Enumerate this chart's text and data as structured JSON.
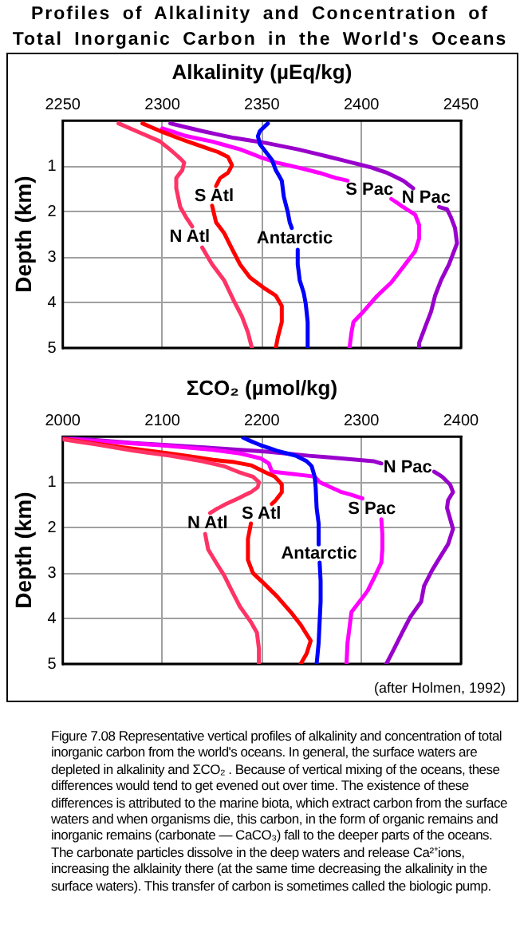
{
  "chart_data": [
    {
      "type": "line",
      "title": "Profiles of Alkalinity and Concentration of Total Inorganic Carbon in the World's Oceans",
      "xlabel": "Alkalinity (µEq/kg)",
      "ylabel": "Depth (km)",
      "xlim": [
        2250,
        2450
      ],
      "xticks": [
        2250,
        2300,
        2350,
        2400,
        2450
      ],
      "ylim": [
        5,
        0
      ],
      "yticks": [
        1,
        2,
        3,
        4,
        5
      ],
      "grid": true,
      "legend": false,
      "marker": "none",
      "series": [
        {
          "name": "N Atl",
          "color": "#ff3366",
          "x": [
            2278,
            2299,
            2307,
            2311,
            2310,
            2307,
            2307,
            2309,
            2312,
            2315,
            null,
            2320,
            2325,
            2331,
            2336,
            2340,
            2343,
            2345
          ],
          "values": [
            0.06,
            0.46,
            0.75,
            0.92,
            1.09,
            1.26,
            1.49,
            1.9,
            2.13,
            2.33,
            null,
            2.79,
            3.16,
            3.51,
            3.97,
            4.31,
            4.66,
            5
          ]
        },
        {
          "name": "S Atl",
          "color": "#ff0000",
          "x": [
            2290,
            2299,
            2309,
            2320,
            2328,
            2333,
            2335,
            2333,
            2329,
            2327,
            null,
            2325,
            2327,
            2331,
            2335,
            2339,
            2344,
            2351,
            2357,
            2360,
            2360,
            2358,
            2357
          ],
          "values": [
            0.06,
            0.23,
            0.4,
            0.57,
            0.69,
            0.8,
            0.98,
            1.15,
            1.26,
            1.44,
            null,
            1.87,
            2.24,
            2.47,
            2.82,
            3.16,
            3.45,
            3.68,
            3.85,
            4.08,
            4.43,
            4.77,
            5
          ]
        },
        {
          "name": "Antarctic",
          "color": "#0000ff",
          "x": [
            2353,
            2349,
            2348,
            2349,
            2352,
            2355,
            2357,
            2360,
            2361,
            2363,
            2364,
            2365,
            null,
            2368,
            2368,
            2369,
            2371,
            2372,
            2373,
            2373
          ],
          "values": [
            0.06,
            0.23,
            0.34,
            0.52,
            0.69,
            0.86,
            1.09,
            1.32,
            1.67,
            2.01,
            2.24,
            2.36,
            null,
            2.84,
            3.16,
            3.51,
            3.79,
            4.02,
            4.43,
            5
          ]
        },
        {
          "name": "S Pac",
          "color": "#ff00ff",
          "x": [
            2300,
            2312,
            2325,
            2339,
            2349,
            2357,
            2368,
            2379,
            2387,
            2393,
            null,
            2415,
            2421,
            2427,
            2429,
            2429,
            2427,
            2421,
            2415,
            2408,
            2401,
            2396,
            2395,
            2394
          ],
          "values": [
            0.17,
            0.34,
            0.46,
            0.63,
            0.8,
            0.92,
            1.03,
            1.15,
            1.26,
            1.32,
            null,
            1.72,
            1.9,
            2.07,
            2.3,
            2.59,
            2.87,
            3.22,
            3.56,
            3.85,
            4.2,
            4.43,
            4.66,
            5
          ]
        },
        {
          "name": "N Pac",
          "color": "#9900cc",
          "x": [
            2304,
            2320,
            2336,
            2352,
            2368,
            2384,
            2395,
            2405,
            2413,
            2421,
            2426,
            null,
            2439,
            2443,
            2445,
            2447,
            2448,
            2446,
            2444,
            2440,
            2437,
            2435,
            2432,
            2429,
            2429
          ],
          "values": [
            0.06,
            0.23,
            0.38,
            0.49,
            0.63,
            0.8,
            0.92,
            1.03,
            1.15,
            1.32,
            1.49,
            null,
            1.9,
            1.95,
            2.13,
            2.36,
            2.7,
            2.93,
            3.16,
            3.51,
            3.85,
            4.2,
            4.54,
            4.89,
            5
          ]
        }
      ]
    },
    {
      "type": "line",
      "xlabel": "ΣCO₂ (µmol/kg)",
      "ylabel": "Depth (km)",
      "xlim": [
        2000,
        2400
      ],
      "xticks": [
        2000,
        2100,
        2200,
        2300,
        2400
      ],
      "ylim": [
        5,
        0
      ],
      "yticks": [
        1,
        2,
        3,
        4,
        5
      ],
      "grid": true,
      "legend": false,
      "marker": "none",
      "annotations": [
        "(after Holmen, 1992)",
        "Figure 7.08 Representative vertical profiles of alkalinity and concentration of total inorganic carbon from the world's oceans. In general, the surface waters are depleted in alkalinity and ΣCO₂ . Because of vertical mixing of the oceans, these differences would tend to get evened out over time. The existence of these differences is attributed to the marine biota, which extract carbon from the surface waters and when organisms die, this carbon, in the form of organic remains and inorganic remains (carbonate — CaCO₃) fall to the deeper parts of the oceans. The carbonate particles dissolve in the deep waters and release Ca²⁺ions, increasing the alklainity there (at the same time decreasing the alkalinity in the surface waters). This transfer of carbon is sometimes called the biologic pump."
      ],
      "series": [
        {
          "name": "N Atl",
          "color": "#ff3366",
          "x": [
            2000,
            2033,
            2071,
            2108,
            2140,
            2162,
            2178,
            2191,
            2197,
            2196,
            2189,
            2178,
            2167,
            2156,
            2148,
            null,
            2143,
            2146,
            2154,
            2162,
            2170,
            2178,
            2189,
            2195,
            2197,
            2197
          ],
          "values": [
            0.06,
            0.17,
            0.31,
            0.42,
            0.54,
            0.65,
            0.79,
            0.88,
            1,
            1.11,
            1.22,
            1.34,
            1.45,
            1.57,
            1.68,
            null,
            2.14,
            2.48,
            2.77,
            3.05,
            3.4,
            3.74,
            4.08,
            4.31,
            4.66,
            5
          ]
        },
        {
          "name": "S Atl",
          "color": "#ff0000",
          "x": [
            2000,
            2044,
            2087,
            2124,
            2151,
            2172,
            2189,
            2202,
            2213,
            2220,
            2220,
            2214,
            2210,
            null,
            2189,
            2186,
            2186,
            2191,
            2202,
            2215,
            2229,
            2239,
            2249,
            2245,
            2239
          ],
          "values": [
            0.05,
            0.19,
            0.31,
            0.42,
            0.51,
            0.56,
            0.63,
            0.77,
            0.88,
            1.05,
            1.22,
            1.4,
            1.48,
            null,
            1.91,
            2.25,
            2.71,
            3,
            3.23,
            3.51,
            3.86,
            4.14,
            4.49,
            4.77,
            5
          ]
        },
        {
          "name": "Antarctic",
          "color": "#0000ff",
          "x": [
            2181,
            2189,
            2199,
            2215,
            2234,
            2245,
            2250,
            2253,
            2254,
            2255,
            2257,
            2257,
            null,
            2258,
            2259,
            2259,
            2258,
            2257,
            2255
          ],
          "values": [
            0.02,
            0.1,
            0.19,
            0.31,
            0.42,
            0.54,
            0.65,
            0.88,
            1.11,
            1.57,
            1.91,
            2.37,
            null,
            2.77,
            3.17,
            3.63,
            4.08,
            4.54,
            5
          ]
        },
        {
          "name": "S Pac",
          "color": "#ff00ff",
          "x": [
            2000,
            2044,
            2098,
            2151,
            2178,
            2199,
            2207,
            2210,
            2231,
            2253,
            2258,
            2269,
            2280,
            2290,
            2301,
            null,
            2320,
            2321,
            2321,
            2320,
            2314,
            2306,
            2298,
            2290,
            2288,
            2286,
            2285
          ],
          "values": [
            0.05,
            0.11,
            0.19,
            0.29,
            0.37,
            0.48,
            0.59,
            0.77,
            0.82,
            0.88,
            1,
            1.11,
            1.22,
            1.28,
            1.36,
            null,
            1.82,
            2.14,
            2.48,
            2.77,
            3.05,
            3.4,
            3.63,
            3.86,
            4.2,
            4.54,
            5
          ]
        },
        {
          "name": "N Pac",
          "color": "#9900cc",
          "x": [
            2000,
            2071,
            2151,
            2205,
            2247,
            2280,
            2312,
            2320,
            null,
            2373,
            2381,
            2389,
            2392,
            2387,
            2386,
            2389,
            2392,
            2387,
            2379,
            2371,
            2363,
            2360,
            2349,
            2341,
            2333,
            2325
          ],
          "values": [
            0.02,
            0.14,
            0.25,
            0.33,
            0.42,
            0.48,
            0.54,
            0.59,
            null,
            0.77,
            0.88,
            1.05,
            1.22,
            1.4,
            1.57,
            1.8,
            2.03,
            2.37,
            2.65,
            2.94,
            3.28,
            3.63,
            3.97,
            4.31,
            4.66,
            5
          ]
        }
      ]
    }
  ]
}
